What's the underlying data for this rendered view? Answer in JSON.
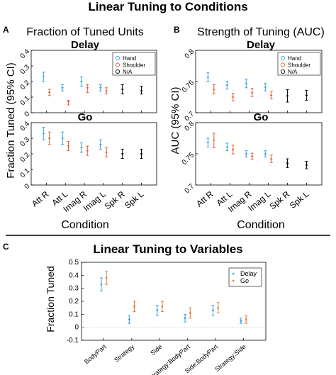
{
  "figure": {
    "title_top": "Linear Tuning to Conditions",
    "title_bottom": "Linear Tuning to Variables",
    "colors": {
      "hand": "#3aa0e0",
      "shoulder": "#e0603a",
      "na": "#000000",
      "delay": "#3aa0e0",
      "go": "#e07840"
    }
  },
  "chart_data": [
    {
      "id": "A-delay",
      "type": "scatter",
      "panel_letter": "A",
      "heading": "Fraction of Tuned Units",
      "subplot_title": "Delay",
      "ylabel": "Fraction Tuned (95% CI)",
      "xlabel": "Condition",
      "categories": [
        "Att R",
        "Att L",
        "Imag R",
        "Imag L",
        "Spk R",
        "Spk L"
      ],
      "ylim": [
        0,
        0.4
      ],
      "yticks": [
        "0",
        "0.1",
        "0.2",
        "0.3",
        "0.4"
      ],
      "legend": [
        "Hand",
        "Shoulder",
        "N/A"
      ],
      "series": [
        {
          "name": "Hand",
          "color": "#3aa0e0",
          "points": [
            [
              0,
              0.23,
              0.2,
              0.26
            ],
            [
              1,
              0.16,
              0.14,
              0.18
            ],
            [
              2,
              0.2,
              0.17,
              0.23
            ],
            [
              3,
              0.16,
              0.14,
              0.18
            ]
          ]
        },
        {
          "name": "Shoulder",
          "color": "#e0603a",
          "points": [
            [
              0,
              0.13,
              0.11,
              0.15
            ],
            [
              1,
              0.07,
              0.05,
              0.08
            ],
            [
              2,
              0.16,
              0.13,
              0.18
            ],
            [
              3,
              0.14,
              0.12,
              0.16
            ]
          ]
        },
        {
          "name": "N/A",
          "color": "#000000",
          "points": [
            [
              4,
              0.15,
              0.12,
              0.18
            ],
            [
              5,
              0.14,
              0.12,
              0.17
            ]
          ]
        }
      ]
    },
    {
      "id": "A-go",
      "type": "scatter",
      "panel_letter": "",
      "heading": "",
      "subplot_title": "Go",
      "ylabel": "",
      "xlabel": "",
      "categories": [
        "Att R",
        "Att L",
        "Imag R",
        "Imag L",
        "Spk R",
        "Spk L"
      ],
      "ylim": [
        0,
        0.4
      ],
      "yticks": [
        "0",
        "0.1",
        "0.2",
        "0.3",
        "0.4"
      ],
      "legend": [],
      "series": [
        {
          "name": "Hand",
          "color": "#3aa0e0",
          "points": [
            [
              0,
              0.33,
              0.29,
              0.37
            ],
            [
              1,
              0.3,
              0.26,
              0.34
            ],
            [
              2,
              0.24,
              0.21,
              0.27
            ],
            [
              3,
              0.26,
              0.23,
              0.29
            ]
          ]
        },
        {
          "name": "Shoulder",
          "color": "#e0603a",
          "points": [
            [
              0,
              0.3,
              0.26,
              0.34
            ],
            [
              1,
              0.25,
              0.22,
              0.28
            ],
            [
              2,
              0.22,
              0.19,
              0.25
            ],
            [
              3,
              0.21,
              0.18,
              0.24
            ]
          ]
        },
        {
          "name": "N/A",
          "color": "#000000",
          "points": [
            [
              4,
              0.2,
              0.17,
              0.23
            ],
            [
              5,
              0.2,
              0.17,
              0.23
            ]
          ]
        }
      ]
    },
    {
      "id": "B-delay",
      "type": "scatter",
      "panel_letter": "B",
      "heading": "Strength of Tuning (AUC)",
      "subplot_title": "Delay",
      "ylabel": "AUC (95% CI)",
      "xlabel": "Condition",
      "categories": [
        "Att R",
        "Att L",
        "Imag R",
        "Imag L",
        "Spk R",
        "Spk L"
      ],
      "ylim": [
        0.7,
        0.8
      ],
      "yticks": [
        "0.7",
        "0.75",
        "0.8"
      ],
      "legend": [
        "Hand",
        "Shoulder",
        "N/A"
      ],
      "series": [
        {
          "name": "Hand",
          "color": "#3aa0e0",
          "points": [
            [
              0,
              0.757,
              0.75,
              0.764
            ],
            [
              1,
              0.744,
              0.738,
              0.75
            ],
            [
              2,
              0.747,
              0.74,
              0.754
            ],
            [
              3,
              0.741,
              0.735,
              0.747
            ]
          ]
        },
        {
          "name": "Shoulder",
          "color": "#e0603a",
          "points": [
            [
              0,
              0.737,
              0.73,
              0.745
            ],
            [
              1,
              0.725,
              0.719,
              0.731
            ],
            [
              2,
              0.732,
              0.726,
              0.739
            ],
            [
              3,
              0.728,
              0.722,
              0.734
            ]
          ]
        },
        {
          "name": "N/A",
          "color": "#000000",
          "points": [
            [
              4,
              0.727,
              0.717,
              0.737
            ],
            [
              5,
              0.728,
              0.72,
              0.736
            ]
          ]
        }
      ]
    },
    {
      "id": "B-go",
      "type": "scatter",
      "panel_letter": "",
      "heading": "",
      "subplot_title": "Go",
      "ylabel": "",
      "xlabel": "",
      "categories": [
        "Att R",
        "Att L",
        "Imag R",
        "Imag L",
        "Spk R",
        "Spk L"
      ],
      "ylim": [
        0.7,
        0.8
      ],
      "yticks": [
        "0.7",
        "0.75",
        "0.8"
      ],
      "legend": [],
      "series": [
        {
          "name": "Hand",
          "color": "#3aa0e0",
          "points": [
            [
              0,
              0.768,
              0.761,
              0.775
            ],
            [
              1,
              0.761,
              0.755,
              0.767
            ],
            [
              2,
              0.75,
              0.745,
              0.755
            ],
            [
              3,
              0.75,
              0.745,
              0.755
            ]
          ]
        },
        {
          "name": "Shoulder",
          "color": "#e0603a",
          "points": [
            [
              0,
              0.772,
              0.76,
              0.783
            ],
            [
              1,
              0.757,
              0.75,
              0.764
            ],
            [
              2,
              0.746,
              0.741,
              0.751
            ],
            [
              3,
              0.742,
              0.736,
              0.748
            ]
          ]
        },
        {
          "name": "N/A",
          "color": "#000000",
          "points": [
            [
              4,
              0.735,
              0.728,
              0.742
            ],
            [
              5,
              0.732,
              0.726,
              0.738
            ]
          ]
        }
      ]
    },
    {
      "id": "C",
      "type": "scatter",
      "panel_letter": "C",
      "heading": "",
      "subplot_title": "",
      "ylabel": "Fraction Tuned",
      "xlabel": "",
      "categories": [
        "BodyPart",
        "Strategy",
        "Side",
        "Strategy:BodyPart",
        "Side:BodyPart",
        "Strategy:Side"
      ],
      "ylim": [
        -0.1,
        0.5
      ],
      "yticks": [
        "-0.1",
        "0",
        "0.1",
        "0.2",
        "0.3",
        "0.4",
        "0.5"
      ],
      "legend": [
        "Delay",
        "Go"
      ],
      "series": [
        {
          "name": "Delay",
          "color": "#3aa0e0",
          "points": [
            [
              0,
              0.33,
              0.28,
              0.38
            ],
            [
              1,
              0.06,
              0.03,
              0.09
            ],
            [
              2,
              0.13,
              0.09,
              0.17
            ],
            [
              3,
              0.07,
              0.04,
              0.1
            ],
            [
              4,
              0.13,
              0.09,
              0.17
            ],
            [
              5,
              0.05,
              0.03,
              0.07
            ]
          ]
        },
        {
          "name": "Go",
          "color": "#e07840",
          "points": [
            [
              0,
              0.38,
              0.33,
              0.43
            ],
            [
              1,
              0.16,
              0.12,
              0.2
            ],
            [
              2,
              0.16,
              0.12,
              0.2
            ],
            [
              3,
              0.11,
              0.07,
              0.15
            ],
            [
              4,
              0.15,
              0.11,
              0.19
            ],
            [
              5,
              0.06,
              0.03,
              0.09
            ]
          ]
        }
      ]
    }
  ]
}
